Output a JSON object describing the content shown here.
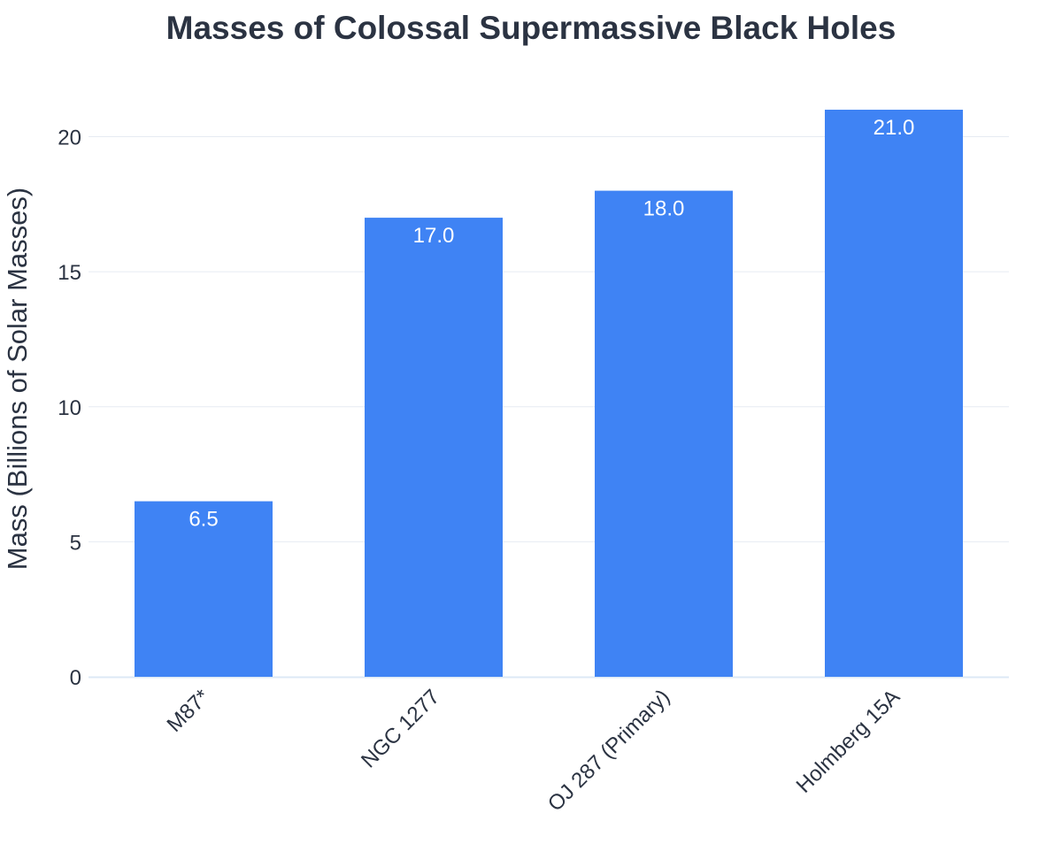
{
  "chart_data": {
    "type": "bar",
    "title": "Masses of Colossal Supermassive Black Holes",
    "xlabel": "",
    "ylabel": "Mass (Billions of Solar Masses)",
    "categories": [
      "M87*",
      "NGC 1277",
      "OJ 287 (Primary)",
      "Holmberg 15A"
    ],
    "values": [
      6.5,
      17.0,
      18.0,
      21.0
    ],
    "value_labels": [
      "6.5",
      "17.0",
      "18.0",
      "21.0"
    ],
    "ylim": [
      0,
      21
    ],
    "yticks": [
      0,
      5,
      10,
      15,
      20
    ],
    "ytick_labels": [
      "0",
      "5",
      "10",
      "15",
      "20"
    ],
    "grid": true,
    "legend": "none",
    "colors": {
      "bar": "#3f83f4",
      "title": "#2b3342",
      "axis_text": "#2b3342",
      "gridline": "#e6ebf2",
      "baseline": "#dce8f5",
      "value_label": "#ffffff"
    }
  }
}
